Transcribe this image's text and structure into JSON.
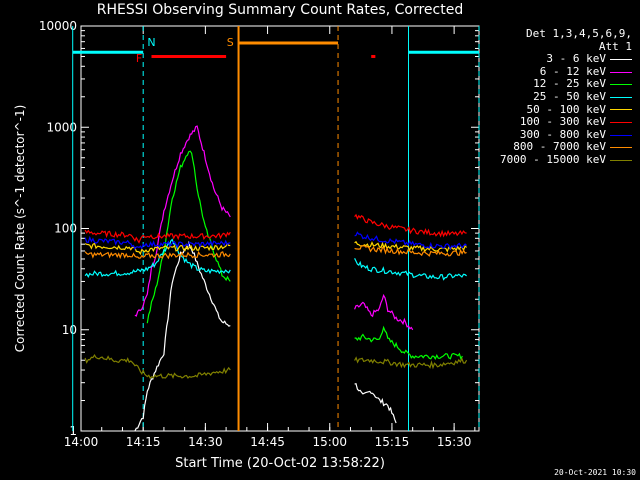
{
  "title": "RHESSI Observing Summary Count Rates, Corrected",
  "timestamp": "20-Oct-2021 10:30",
  "legend": {
    "header1": "Det 1,3,4,5,6,9,",
    "header2": "Att 1",
    "entries": [
      {
        "label": "3 - 6 keV",
        "color": "#ffffff"
      },
      {
        "label": "6 - 12 keV",
        "color": "#ff00ff"
      },
      {
        "label": "12 - 25 keV",
        "color": "#00ff00"
      },
      {
        "label": "25 - 50 keV",
        "color": "#00ffff"
      },
      {
        "label": "50 - 100 keV",
        "color": "#ffd700"
      },
      {
        "label": "100 - 300 keV",
        "color": "#ff0000"
      },
      {
        "label": "300 - 800 keV",
        "color": "#0000ff"
      },
      {
        "label": "800 - 7000 keV",
        "color": "#ff8c00"
      },
      {
        "label": "7000 - 15000 keV",
        "color": "#808000"
      }
    ]
  },
  "chart_data": {
    "type": "line",
    "title": "RHESSI Observing Summary Count Rates, Corrected",
    "xlabel": "Start Time (20-Oct-02 13:58:22)",
    "ylabel": "Corrected Count Rate (s^-1 detector^-1)",
    "y_scale": "log",
    "ylim": [
      1,
      10000
    ],
    "xlim": [
      "14:00",
      "15:36"
    ],
    "x_ticks": [
      "14:00",
      "14:15",
      "14:30",
      "14:45",
      "15:00",
      "15:15",
      "15:30"
    ],
    "y_ticks": [
      "1",
      "10",
      "100",
      "1000",
      "10000"
    ],
    "annotations": [
      {
        "label": "N",
        "color": "#00ffff",
        "x": "14:17"
      },
      {
        "label": "F",
        "color": "#ff0000",
        "x": "14:14"
      },
      {
        "label": "S",
        "color": "#ff8c00",
        "x": "14:36"
      }
    ],
    "bands": [
      {
        "name": "night",
        "color": "#00ffff",
        "intervals": [
          [
            "13:58",
            "14:15"
          ],
          [
            "15:19",
            "15:36"
          ]
        ],
        "level": 5500
      },
      {
        "name": "flare",
        "color": "#ff0000",
        "intervals": [
          [
            "14:17",
            "14:35"
          ],
          [
            "15:10",
            "15:11"
          ]
        ],
        "level": 5000
      },
      {
        "name": "saa",
        "color": "#ff8c00",
        "intervals": [
          [
            "14:38",
            "15:02"
          ]
        ],
        "level": 6800
      }
    ],
    "series": [
      {
        "name": "3 - 6 keV",
        "color": "#ffffff",
        "segments": [
          [
            [
              "14:13",
              1.0
            ],
            [
              "14:15",
              1.4
            ],
            [
              "14:16",
              2.5
            ],
            [
              "14:17",
              3.2
            ],
            [
              "14:18",
              4
            ],
            [
              "14:20",
              6
            ],
            [
              "14:22",
              30
            ],
            [
              "14:24",
              55
            ],
            [
              "14:26",
              70
            ],
            [
              "14:27",
              60
            ],
            [
              "14:28",
              45
            ],
            [
              "14:30",
              28
            ],
            [
              "14:32",
              18
            ],
            [
              "14:33",
              14
            ],
            [
              "14:34",
              12
            ],
            [
              "14:36",
              11
            ]
          ],
          [
            [
              "15:06",
              3.0
            ],
            [
              "15:08",
              2.2
            ],
            [
              "15:10",
              2.5
            ],
            [
              "15:12",
              2.0
            ],
            [
              "15:14",
              1.8
            ],
            [
              "15:15",
              1.5
            ],
            [
              "15:16",
              1.2
            ]
          ]
        ]
      },
      {
        "name": "6 - 12 keV",
        "color": "#ff00ff",
        "segments": [
          [
            [
              "14:13",
              14
            ],
            [
              "14:14",
              15
            ],
            [
              "14:15",
              18
            ],
            [
              "14:16",
              22
            ],
            [
              "14:17",
              40
            ],
            [
              "14:18",
              55
            ],
            [
              "14:20",
              150
            ],
            [
              "14:22",
              300
            ],
            [
              "14:24",
              550
            ],
            [
              "14:26",
              800
            ],
            [
              "14:28",
              1000
            ],
            [
              "14:30",
              500
            ],
            [
              "14:32",
              250
            ],
            [
              "14:34",
              160
            ],
            [
              "14:36",
              130
            ]
          ],
          [
            [
              "15:06",
              16
            ],
            [
              "15:08",
              18
            ],
            [
              "15:10",
              14
            ],
            [
              "15:12",
              16
            ],
            [
              "15:13",
              22
            ],
            [
              "15:14",
              16
            ],
            [
              "15:16",
              13
            ],
            [
              "15:18",
              12
            ],
            [
              "15:19",
              11
            ],
            [
              "15:20",
              10
            ]
          ]
        ]
      },
      {
        "name": "12 - 25 keV",
        "color": "#00ff00",
        "segments": [
          [
            [
              "14:16",
              12
            ],
            [
              "14:17",
              18
            ],
            [
              "14:18",
              25
            ],
            [
              "14:20",
              60
            ],
            [
              "14:22",
              200
            ],
            [
              "14:24",
              400
            ],
            [
              "14:26",
              600
            ],
            [
              "14:27",
              500
            ],
            [
              "14:28",
              250
            ],
            [
              "14:30",
              100
            ],
            [
              "14:32",
              60
            ],
            [
              "14:34",
              35
            ],
            [
              "14:36",
              30
            ]
          ],
          [
            [
              "15:06",
              8
            ],
            [
              "15:08",
              8.5
            ],
            [
              "15:10",
              8
            ],
            [
              "15:12",
              8
            ],
            [
              "15:13",
              11
            ],
            [
              "15:14",
              8
            ],
            [
              "15:16",
              7
            ],
            [
              "15:18",
              6
            ],
            [
              "15:20",
              5.5
            ],
            [
              "15:24",
              5.5
            ],
            [
              "15:28",
              5.5
            ],
            [
              "15:32",
              5.5
            ]
          ]
        ]
      },
      {
        "name": "25 - 50 keV",
        "color": "#00ffff",
        "segments": [
          [
            [
              "14:01",
              35
            ],
            [
              "14:04",
              36
            ],
            [
              "14:08",
              36
            ],
            [
              "14:12",
              37
            ],
            [
              "14:14",
              38
            ],
            [
              "14:16",
              40
            ],
            [
              "14:18",
              45
            ],
            [
              "14:20",
              60
            ],
            [
              "14:22",
              80
            ],
            [
              "14:24",
              55
            ],
            [
              "14:26",
              45
            ],
            [
              "14:28",
              40
            ],
            [
              "14:30",
              38
            ],
            [
              "14:33",
              38
            ],
            [
              "14:36",
              39
            ]
          ],
          [
            [
              "15:06",
              48
            ],
            [
              "15:08",
              42
            ],
            [
              "15:10",
              40
            ],
            [
              "15:14",
              38
            ],
            [
              "15:18",
              36
            ],
            [
              "15:22",
              34
            ],
            [
              "15:26",
              33
            ],
            [
              "15:30",
              34
            ],
            [
              "15:33",
              34
            ]
          ]
        ]
      },
      {
        "name": "50 - 100 keV",
        "color": "#ffd700",
        "segments": [
          [
            [
              "14:01",
              68
            ],
            [
              "14:04",
              67
            ],
            [
              "14:08",
              66
            ],
            [
              "14:12",
              65
            ],
            [
              "14:14",
              58
            ],
            [
              "14:16",
              62
            ],
            [
              "14:20",
              64
            ],
            [
              "14:24",
              64
            ],
            [
              "14:28",
              64
            ],
            [
              "14:32",
              65
            ],
            [
              "14:36",
              68
            ]
          ],
          [
            [
              "15:06",
              72
            ],
            [
              "15:08",
              70
            ],
            [
              "15:12",
              68
            ],
            [
              "15:16",
              66
            ],
            [
              "15:20",
              64
            ],
            [
              "15:24",
              63
            ],
            [
              "15:28",
              62
            ],
            [
              "15:33",
              65
            ]
          ]
        ]
      },
      {
        "name": "100 - 300 keV",
        "color": "#ff0000",
        "segments": [
          [
            [
              "14:01",
              92
            ],
            [
              "14:04",
              90
            ],
            [
              "14:08",
              88
            ],
            [
              "14:12",
              86
            ],
            [
              "14:14",
              75
            ],
            [
              "14:15",
              85
            ],
            [
              "14:18",
              84
            ],
            [
              "14:22",
              84
            ],
            [
              "14:26",
              84
            ],
            [
              "14:30",
              84
            ],
            [
              "14:34",
              85
            ],
            [
              "14:36",
              92
            ]
          ],
          [
            [
              "15:06",
              135
            ],
            [
              "15:08",
              125
            ],
            [
              "15:10",
              115
            ],
            [
              "15:14",
              105
            ],
            [
              "15:18",
              98
            ],
            [
              "15:22",
              93
            ],
            [
              "15:26",
              90
            ],
            [
              "15:30",
              88
            ],
            [
              "15:33",
              90
            ]
          ]
        ]
      },
      {
        "name": "300 - 800 keV",
        "color": "#0000ff",
        "segments": [
          [
            [
              "14:01",
              78
            ],
            [
              "14:04",
              76
            ],
            [
              "14:08",
              74
            ],
            [
              "14:12",
              72
            ],
            [
              "14:14",
              62
            ],
            [
              "14:15",
              70
            ],
            [
              "14:20",
              70
            ],
            [
              "14:24",
              70
            ],
            [
              "14:28",
              70
            ],
            [
              "14:32",
              71
            ],
            [
              "14:36",
              72
            ]
          ],
          [
            [
              "15:06",
              90
            ],
            [
              "15:08",
              84
            ],
            [
              "15:12",
              78
            ],
            [
              "15:16",
              74
            ],
            [
              "15:20",
              70
            ],
            [
              "15:24",
              68
            ],
            [
              "15:28",
              67
            ],
            [
              "15:33",
              68
            ]
          ]
        ]
      },
      {
        "name": "800 - 7000 keV",
        "color": "#ff8c00",
        "segments": [
          [
            [
              "14:01",
              56
            ],
            [
              "14:04",
              55
            ],
            [
              "14:08",
              55
            ],
            [
              "14:12",
              55
            ],
            [
              "14:14",
              50
            ],
            [
              "14:16",
              54
            ],
            [
              "14:20",
              54
            ],
            [
              "14:24",
              55
            ],
            [
              "14:28",
              55
            ],
            [
              "14:32",
              55
            ],
            [
              "14:36",
              56
            ]
          ],
          [
            [
              "15:06",
              66
            ],
            [
              "15:08",
              64
            ],
            [
              "15:12",
              62
            ],
            [
              "15:16",
              60
            ],
            [
              "15:20",
              58
            ],
            [
              "15:24",
              57
            ],
            [
              "15:28",
              57
            ],
            [
              "15:33",
              58
            ]
          ]
        ]
      },
      {
        "name": "7000 - 15000 keV",
        "color": "#808000",
        "segments": [
          [
            [
              "14:01",
              5
            ],
            [
              "14:04",
              5.5
            ],
            [
              "14:08",
              5
            ],
            [
              "14:12",
              5
            ],
            [
              "14:14",
              4
            ],
            [
              "14:16",
              3.5
            ],
            [
              "14:20",
              3.5
            ],
            [
              "14:24",
              3.5
            ],
            [
              "14:28",
              3.5
            ],
            [
              "14:32",
              3.8
            ],
            [
              "14:36",
              4
            ]
          ],
          [
            [
              "15:06",
              5
            ],
            [
              "15:10",
              5
            ],
            [
              "15:14",
              4.8
            ],
            [
              "15:18",
              4.5
            ],
            [
              "15:22",
              4.5
            ],
            [
              "15:26",
              4.5
            ],
            [
              "15:30",
              4.8
            ],
            [
              "15:33",
              5
            ]
          ]
        ]
      }
    ]
  }
}
